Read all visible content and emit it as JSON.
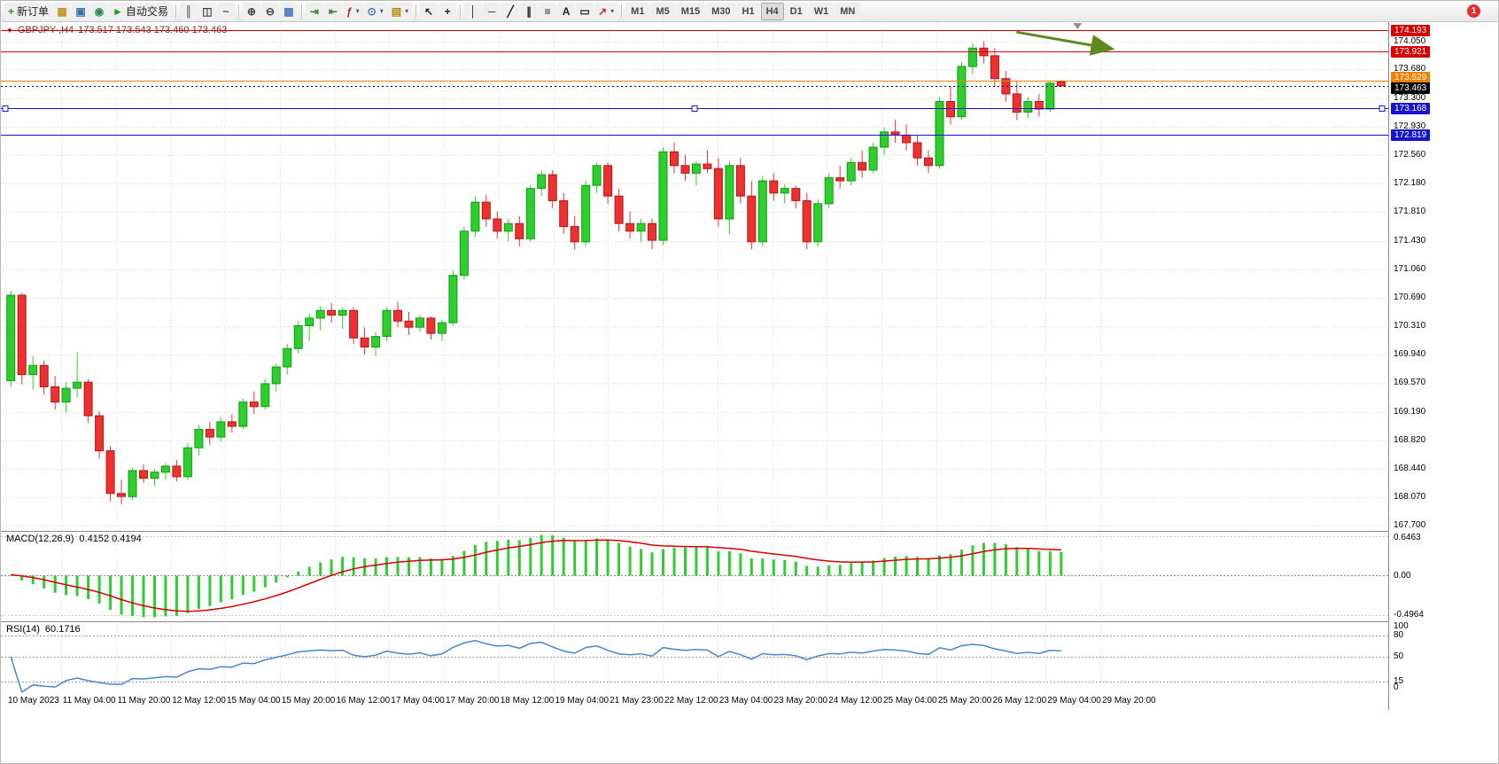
{
  "toolbar": {
    "caret_glyph": "▾",
    "notification_badge": "1",
    "items": [
      {
        "name": "new-order-button",
        "glyph": "+",
        "color": "#18a018",
        "label": "新订单"
      },
      {
        "name": "market-watch-button",
        "glyph": "▦",
        "color": "#c8931c"
      },
      {
        "name": "data-window-button",
        "glyph": "▣",
        "color": "#3a6ea5"
      },
      {
        "name": "navigator-button",
        "glyph": "◉",
        "color": "#2e8b57"
      },
      {
        "name": "autotrading-button",
        "glyph": "►",
        "color": "#18a018",
        "label": "自动交易"
      },
      {
        "sep": true
      },
      {
        "name": "bar-chart-button",
        "glyph": "║",
        "color": "#444444"
      },
      {
        "name": "candlestick-button",
        "glyph": "◫",
        "color": "#444444"
      },
      {
        "name": "line-chart-button",
        "glyph": "~",
        "color": "#444444"
      },
      {
        "sep": true
      },
      {
        "name": "zoom-in-button",
        "glyph": "⊕",
        "color": "#444444"
      },
      {
        "name": "zoom-out-button",
        "glyph": "⊖",
        "color": "#444444"
      },
      {
        "name": "tile-windows-button",
        "glyph": "▦",
        "color": "#4a78c8"
      },
      {
        "sep": true
      },
      {
        "name": "auto-scroll-button",
        "glyph": "⇥",
        "color": "#2e8b22"
      },
      {
        "name": "chart-shift-button",
        "glyph": "⇤",
        "color": "#2e8b22"
      },
      {
        "name": "indicators-dropdown-button",
        "glyph": "ƒ",
        "color": "#b03030",
        "caret": true
      },
      {
        "name": "periods-dropdown-button",
        "glyph": "⊙",
        "color": "#3a6ea5",
        "caret": true
      },
      {
        "name": "templates-dropdown-button",
        "glyph": "▤",
        "color": "#b8860b",
        "caret": true
      },
      {
        "sep": true
      },
      {
        "name": "cursor-button",
        "glyph": "↖",
        "color": "#222222"
      },
      {
        "name": "crosshair-button",
        "glyph": "+",
        "color": "#222222"
      },
      {
        "sep": true
      },
      {
        "name": "vertical-line-button",
        "glyph": "│",
        "color": "#222222"
      },
      {
        "name": "horizontal-line-button",
        "glyph": "─",
        "color": "#222222"
      },
      {
        "name": "trendline-button",
        "glyph": "╱",
        "color": "#222222"
      },
      {
        "name": "channel-button",
        "glyph": "∥",
        "color": "#222222"
      },
      {
        "name": "fibonacci-button",
        "glyph": "≡",
        "color": "#222222"
      },
      {
        "name": "text-button",
        "glyph": "A",
        "color": "#222222"
      },
      {
        "name": "label-button",
        "glyph": "▭",
        "color": "#222222"
      },
      {
        "name": "arrows-dropdown-button",
        "glyph": "↗",
        "color": "#b03030",
        "caret": true
      },
      {
        "sep": true
      },
      {
        "name": "timeframe-m1-button",
        "tf": "M1"
      },
      {
        "name": "timeframe-m5-button",
        "tf": "M5"
      },
      {
        "name": "timeframe-m15-button",
        "tf": "M15"
      },
      {
        "name": "timeframe-m30-button",
        "tf": "M30"
      },
      {
        "name": "timeframe-h1-button",
        "tf": "H1"
      },
      {
        "name": "timeframe-h4-button",
        "tf": "H4",
        "active": true
      },
      {
        "name": "timeframe-d1-button",
        "tf": "D1"
      },
      {
        "name": "timeframe-w1-button",
        "tf": "W1"
      },
      {
        "name": "timeframe-mn-button",
        "tf": "MN"
      }
    ]
  },
  "chart": {
    "collapse_glyph": "▼",
    "symbol_period": "GBPJPY-,H4",
    "ohlc_display": "173.517 173.543 173.460 173.463"
  },
  "chart_data": {
    "type": "candlestick",
    "symbol": "GBPJPY-",
    "timeframe": "H4",
    "up_color": "#2fce2f",
    "down_color": "#f03030",
    "up_border": "#0e9e0e",
    "down_border": "#b01818",
    "y_range": {
      "min": 167.63,
      "max": 174.3
    },
    "y_ticks": [
      "174.050",
      "173.680",
      "173.300",
      "172.930",
      "172.560",
      "172.180",
      "171.810",
      "171.430",
      "171.060",
      "170.690",
      "170.310",
      "169.940",
      "169.570",
      "169.190",
      "168.820",
      "168.440",
      "168.070",
      "167.700"
    ],
    "price_markers": [
      {
        "label": "174.193",
        "price": 174.193,
        "color": "#d40000",
        "style": "solid"
      },
      {
        "label": "173.921",
        "price": 173.921,
        "color": "#d40000",
        "style": "solid"
      },
      {
        "label": "173.529",
        "price": 173.529,
        "color": "#f08000",
        "style": "solid",
        "label_dy": -4
      },
      {
        "label": "173.463",
        "price": 173.463,
        "color": "#000000",
        "style": "dotted",
        "label_dy": 2
      },
      {
        "label": "173.168",
        "price": 173.168,
        "color": "#1414c8",
        "style": "solid",
        "selected": true
      },
      {
        "label": "172.819",
        "price": 172.819,
        "color": "#1414c8",
        "style": "solid"
      }
    ],
    "x_labels": [
      "10 May 2023",
      "11 May 04:00",
      "11 May 20:00",
      "12 May 12:00",
      "15 May 04:00",
      "15 May 20:00",
      "16 May 12:00",
      "17 May 04:00",
      "17 May 20:00",
      "18 May 12:00",
      "19 May 04:00",
      "21 May 23:00",
      "22 May 12:00",
      "23 May 04:00",
      "23 May 20:00",
      "24 May 12:00",
      "25 May 04:00",
      "25 May 20:00",
      "26 May 12:00",
      "29 May 04:00",
      "29 May 20:00"
    ],
    "candles": [
      [
        169.6,
        170.78,
        169.52,
        170.72
      ],
      [
        170.72,
        170.75,
        169.55,
        169.68
      ],
      [
        169.68,
        169.92,
        169.48,
        169.8
      ],
      [
        169.8,
        169.86,
        169.42,
        169.52
      ],
      [
        169.52,
        169.66,
        169.22,
        169.32
      ],
      [
        169.32,
        169.58,
        169.18,
        169.5
      ],
      [
        169.5,
        169.97,
        169.38,
        169.58
      ],
      [
        169.58,
        169.62,
        169.05,
        169.14
      ],
      [
        169.14,
        169.2,
        168.58,
        168.68
      ],
      [
        168.68,
        168.74,
        168.02,
        168.12
      ],
      [
        168.12,
        168.3,
        167.98,
        168.08
      ],
      [
        168.08,
        168.46,
        168.04,
        168.42
      ],
      [
        168.42,
        168.5,
        168.26,
        168.32
      ],
      [
        168.32,
        168.44,
        168.22,
        168.4
      ],
      [
        168.4,
        168.52,
        168.3,
        168.48
      ],
      [
        168.48,
        168.56,
        168.28,
        168.34
      ],
      [
        168.34,
        168.78,
        168.3,
        168.72
      ],
      [
        168.72,
        169.02,
        168.62,
        168.96
      ],
      [
        168.96,
        169.06,
        168.76,
        168.86
      ],
      [
        168.86,
        169.12,
        168.8,
        169.06
      ],
      [
        169.06,
        169.16,
        168.92,
        169.0
      ],
      [
        169.0,
        169.36,
        168.96,
        169.32
      ],
      [
        169.32,
        169.46,
        169.16,
        169.26
      ],
      [
        169.26,
        169.62,
        169.22,
        169.56
      ],
      [
        169.56,
        169.82,
        169.46,
        169.78
      ],
      [
        169.78,
        170.08,
        169.68,
        170.02
      ],
      [
        170.02,
        170.38,
        169.96,
        170.32
      ],
      [
        170.32,
        170.48,
        170.12,
        170.42
      ],
      [
        170.42,
        170.58,
        170.26,
        170.52
      ],
      [
        170.52,
        170.62,
        170.36,
        170.46
      ],
      [
        170.46,
        170.56,
        170.28,
        170.52
      ],
      [
        170.52,
        170.56,
        170.08,
        170.16
      ],
      [
        170.16,
        170.3,
        169.94,
        170.04
      ],
      [
        170.04,
        170.24,
        169.92,
        170.18
      ],
      [
        170.18,
        170.56,
        170.12,
        170.52
      ],
      [
        170.52,
        170.64,
        170.3,
        170.38
      ],
      [
        170.38,
        170.5,
        170.2,
        170.3
      ],
      [
        170.3,
        170.46,
        170.24,
        170.42
      ],
      [
        170.42,
        170.44,
        170.14,
        170.22
      ],
      [
        170.22,
        170.4,
        170.12,
        170.36
      ],
      [
        170.36,
        171.04,
        170.32,
        170.98
      ],
      [
        170.98,
        171.62,
        170.92,
        171.56
      ],
      [
        171.56,
        172.02,
        171.48,
        171.94
      ],
      [
        171.94,
        172.04,
        171.62,
        171.72
      ],
      [
        171.72,
        171.82,
        171.46,
        171.56
      ],
      [
        171.56,
        171.72,
        171.42,
        171.66
      ],
      [
        171.66,
        171.76,
        171.36,
        171.46
      ],
      [
        171.46,
        172.16,
        171.42,
        172.12
      ],
      [
        172.12,
        172.36,
        172.02,
        172.3
      ],
      [
        172.3,
        172.36,
        171.86,
        171.96
      ],
      [
        171.96,
        172.06,
        171.52,
        171.62
      ],
      [
        171.62,
        171.76,
        171.32,
        171.42
      ],
      [
        171.42,
        172.22,
        171.36,
        172.16
      ],
      [
        172.16,
        172.46,
        172.06,
        172.42
      ],
      [
        172.42,
        172.46,
        171.92,
        172.02
      ],
      [
        172.02,
        172.12,
        171.56,
        171.66
      ],
      [
        171.66,
        171.82,
        171.46,
        171.56
      ],
      [
        171.56,
        171.72,
        171.42,
        171.66
      ],
      [
        171.66,
        171.72,
        171.32,
        171.44
      ],
      [
        171.44,
        172.66,
        171.38,
        172.6
      ],
      [
        172.6,
        172.72,
        172.32,
        172.42
      ],
      [
        172.42,
        172.56,
        172.22,
        172.32
      ],
      [
        172.32,
        172.48,
        172.16,
        172.44
      ],
      [
        172.44,
        172.62,
        172.32,
        172.38
      ],
      [
        172.38,
        172.52,
        171.62,
        171.72
      ],
      [
        171.72,
        172.48,
        171.52,
        172.42
      ],
      [
        172.42,
        172.52,
        171.92,
        172.02
      ],
      [
        172.02,
        172.22,
        171.32,
        171.42
      ],
      [
        171.42,
        172.28,
        171.36,
        172.22
      ],
      [
        172.22,
        172.32,
        171.96,
        172.06
      ],
      [
        172.06,
        172.18,
        171.92,
        172.12
      ],
      [
        172.12,
        172.16,
        171.86,
        171.96
      ],
      [
        171.96,
        172.06,
        171.32,
        171.42
      ],
      [
        171.42,
        171.98,
        171.36,
        171.92
      ],
      [
        171.92,
        172.32,
        171.86,
        172.26
      ],
      [
        172.26,
        172.42,
        172.12,
        172.22
      ],
      [
        172.22,
        172.52,
        172.16,
        172.46
      ],
      [
        172.46,
        172.62,
        172.26,
        172.36
      ],
      [
        172.36,
        172.72,
        172.32,
        172.66
      ],
      [
        172.66,
        172.92,
        172.56,
        172.86
      ],
      [
        172.86,
        173.02,
        172.72,
        172.82
      ],
      [
        172.82,
        172.96,
        172.62,
        172.72
      ],
      [
        172.72,
        172.82,
        172.42,
        172.52
      ],
      [
        172.52,
        172.62,
        172.32,
        172.42
      ],
      [
        172.42,
        173.32,
        172.38,
        173.26
      ],
      [
        173.26,
        173.46,
        172.96,
        173.06
      ],
      [
        173.06,
        173.78,
        173.02,
        173.72
      ],
      [
        173.72,
        174.02,
        173.62,
        173.96
      ],
      [
        173.96,
        174.05,
        173.76,
        173.86
      ],
      [
        173.86,
        173.96,
        173.46,
        173.56
      ],
      [
        173.56,
        173.66,
        173.26,
        173.36
      ],
      [
        173.36,
        173.52,
        173.02,
        173.12
      ],
      [
        173.12,
        173.32,
        173.04,
        173.26
      ],
      [
        173.26,
        173.36,
        173.06,
        173.16
      ],
      [
        173.16,
        173.52,
        173.12,
        173.5
      ],
      [
        173.517,
        173.543,
        173.46,
        173.463
      ]
    ],
    "annotations": [
      {
        "type": "trend-arrow",
        "color": "#5c8a1e",
        "x1_frac": 0.732,
        "price1": 174.17,
        "x2_frac": 0.801,
        "price2": 173.95
      }
    ],
    "shift_marker_frac": 0.776,
    "indicators": {
      "macd": {
        "name_label": "MACD(12,26,9)",
        "values_label": "0.4152 0.4194",
        "fast": 12,
        "slow": 26,
        "signal": 9,
        "axis_labels": [
          "0.6463",
          "0.00",
          "-0.4964"
        ],
        "hist_color": "#2fce2f",
        "signal_color": "#d40000"
      },
      "rsi": {
        "name_label": "RSI(14)",
        "value_label": "60.1716",
        "period": 14,
        "levels": [
          80,
          50,
          15
        ],
        "axis_labels": [
          "100",
          "80",
          "50",
          "15",
          "0"
        ],
        "line_color": "#4a86c8"
      }
    }
  }
}
